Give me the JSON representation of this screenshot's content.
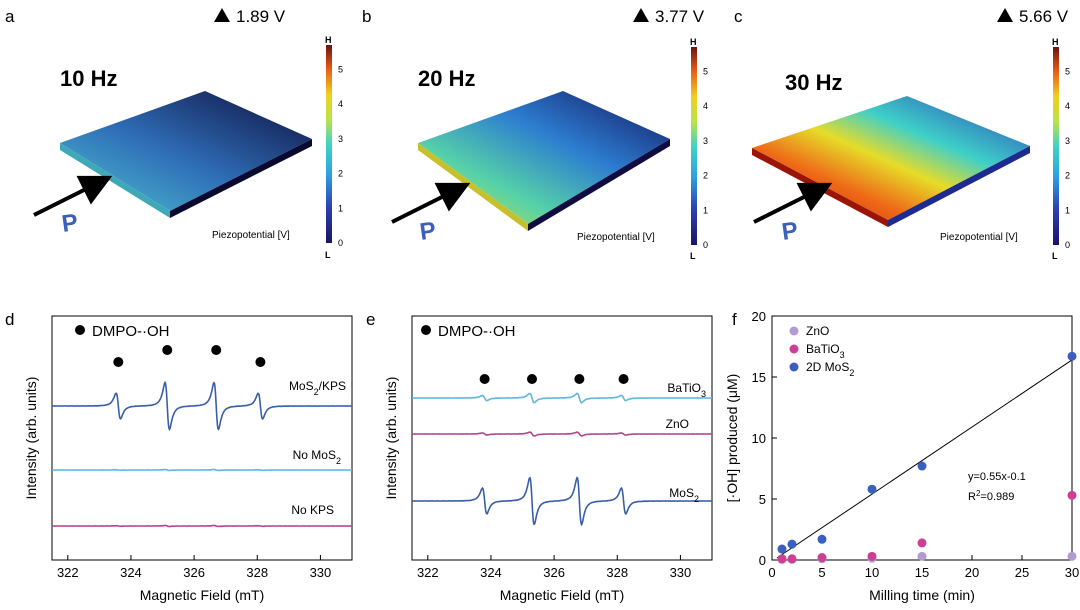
{
  "panels": {
    "a": {
      "letter": "a",
      "freq": "10 Hz",
      "voltage": "1.89 V",
      "colorbar_label": "Piezopotential [V]",
      "force_label": "P",
      "cb_high": "H",
      "cb_low": "L",
      "cb_ticks": [
        "0",
        "1",
        "2",
        "3",
        "4",
        "5"
      ]
    },
    "b": {
      "letter": "b",
      "freq": "20 Hz",
      "voltage": "3.77 V",
      "colorbar_label": "Piezopotential [V]",
      "force_label": "P",
      "cb_high": "H",
      "cb_low": "L",
      "cb_ticks": [
        "0",
        "1",
        "2",
        "3",
        "4",
        "5"
      ]
    },
    "c": {
      "letter": "c",
      "freq": "30 Hz",
      "voltage": "5.66 V",
      "colorbar_label": "Piezopotential [V]",
      "force_label": "P",
      "cb_high": "H",
      "cb_low": "L",
      "cb_ticks": [
        "0",
        "1",
        "2",
        "3",
        "4",
        "5"
      ]
    }
  },
  "colors": {
    "dark_blue": "#3a5fa8",
    "light_blue": "#62b6dd",
    "magenta": "#b3478f",
    "zno": "#b39ad0",
    "batio3": "#cc3f96",
    "mos2": "#3b5fbf",
    "a_top": "#0f0f4a",
    "a_bottom": "#3fb7c8",
    "b_top": "#1a1a6a",
    "b_mid": "#33c3c3",
    "b_bottom": "#e8e030",
    "c_top": "#2a3ab0",
    "c_mid": "#e8d020",
    "c_bottom": "#d22a10"
  },
  "chart_data": [
    {
      "panel": "d",
      "type": "line",
      "legend": "DMPO-·OH",
      "xlabel": "Magnetic Field (mT)",
      "ylabel": "Intensity (arb. units)",
      "xlim": [
        321.5,
        331
      ],
      "xticks": [
        "322",
        "324",
        "326",
        "328",
        "330"
      ],
      "peak_positions": [
        323.6,
        325.15,
        326.7,
        328.1
      ],
      "series": [
        {
          "name": "MoS2/KPS",
          "label_main": "MoS",
          "label_sub": "2",
          "label_tail": "/KPS",
          "amplitude": 1.0
        },
        {
          "name": "No MoS2",
          "label_main": "No MoS",
          "label_sub": "2",
          "label_tail": "",
          "amplitude": 0.02
        },
        {
          "name": "No KPS",
          "label_main": "No KPS",
          "label_sub": "",
          "label_tail": "",
          "amplitude": 0.02
        }
      ]
    },
    {
      "panel": "e",
      "type": "line",
      "legend": "DMPO-·OH",
      "xlabel": "Magnetic Field (mT)",
      "ylabel": "Intensity (arb. units)",
      "xlim": [
        321.5,
        331
      ],
      "xticks": [
        "322",
        "324",
        "326",
        "328",
        "330"
      ],
      "peak_positions": [
        323.8,
        325.3,
        326.8,
        328.2
      ],
      "series": [
        {
          "name": "BaTiO3",
          "label_main": "BaTiO",
          "label_sub": "3",
          "label_tail": "",
          "amplitude": 0.2
        },
        {
          "name": "ZnO",
          "label_main": "ZnO",
          "label_sub": "",
          "label_tail": "",
          "amplitude": 0.08
        },
        {
          "name": "MoS2",
          "label_main": "MoS",
          "label_sub": "2",
          "label_tail": "",
          "amplitude": 1.0
        }
      ]
    },
    {
      "panel": "f",
      "type": "scatter",
      "xlabel": "Milling time (min)",
      "ylabel": "[·OH] produced (μM)",
      "xlim": [
        0,
        30
      ],
      "ylim": [
        0,
        20
      ],
      "xticks": [
        "0",
        "5",
        "10",
        "15",
        "20",
        "25",
        "30"
      ],
      "yticks": [
        "0",
        "5",
        "10",
        "15",
        "20"
      ],
      "series": [
        {
          "name": "ZnO",
          "label_main": "ZnO",
          "label_sub": "",
          "x": [
            1,
            2,
            5,
            10,
            15,
            30
          ],
          "y": [
            0.05,
            0.05,
            0.1,
            0.15,
            0.3,
            0.3
          ]
        },
        {
          "name": "BaTiO3",
          "label_main": "BaTiO",
          "label_sub": "3",
          "x": [
            1,
            2,
            5,
            10,
            15,
            30
          ],
          "y": [
            0.1,
            0.1,
            0.2,
            0.3,
            1.4,
            5.3
          ]
        },
        {
          "name": "2D MoS2",
          "label_main": "2D MoS",
          "label_sub": "2",
          "x": [
            1,
            2,
            5,
            10,
            15,
            30
          ],
          "y": [
            0.9,
            1.3,
            1.7,
            5.8,
            7.7,
            16.7
          ]
        }
      ],
      "fit": {
        "equation": "y=0.55x-0.1",
        "r2_main": "R",
        "r2_sup": "2",
        "r2_tail": "=0.989",
        "slope": 0.55,
        "intercept": -0.1,
        "x_range": [
          0.5,
          30
        ]
      }
    }
  ]
}
